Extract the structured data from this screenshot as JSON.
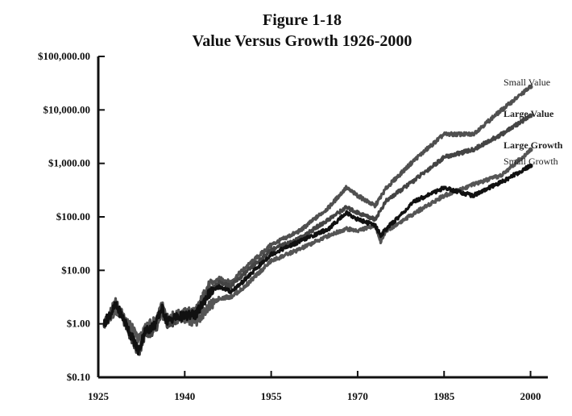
{
  "chart_data": {
    "type": "line",
    "title": "Figure 1-18",
    "subtitle": "Value Versus Growth 1926-2000",
    "y_scale": "log",
    "ylim": [
      0.1,
      100000
    ],
    "xlim": [
      1925,
      2003
    ],
    "y_ticks": [
      {
        "value": 100000,
        "label": "$100,000.00"
      },
      {
        "value": 10000,
        "label": "$10,000.00"
      },
      {
        "value": 1000,
        "label": "$1,000.00"
      },
      {
        "value": 100,
        "label": "$100.00"
      },
      {
        "value": 10,
        "label": "$10.00"
      },
      {
        "value": 1,
        "label": "$1.00"
      },
      {
        "value": 0.1,
        "label": "$0.10"
      }
    ],
    "x_ticks": [
      {
        "value": 1925,
        "label": "1925"
      },
      {
        "value": 1940,
        "label": "1940"
      },
      {
        "value": 1955,
        "label": "1955"
      },
      {
        "value": 1970,
        "label": "1970"
      },
      {
        "value": 1985,
        "label": "1985"
      },
      {
        "value": 2000,
        "label": "2000"
      }
    ],
    "grid": false,
    "legend": "inline labels at line ends (right)",
    "series": [
      {
        "name": "Small Value",
        "label_bold": false,
        "color": "#505050",
        "x": [
          1926,
          1928,
          1929,
          1930,
          1932,
          1933,
          1935,
          1936,
          1937,
          1938,
          1940,
          1942,
          1944,
          1946,
          1948,
          1950,
          1955,
          1960,
          1965,
          1968,
          1970,
          1973,
          1975,
          1980,
          1985,
          1990,
          1995,
          2000
        ],
        "values": [
          1.0,
          2.5,
          1.6,
          1.0,
          0.3,
          0.8,
          1.0,
          2.2,
          1.3,
          1.4,
          1.6,
          1.8,
          5.0,
          7.0,
          6.0,
          10.0,
          30.0,
          55.0,
          150.0,
          350.0,
          250.0,
          160.0,
          350.0,
          1200.0,
          3500.0,
          3500.0,
          10000.0,
          27000.0
        ]
      },
      {
        "name": "Large Value",
        "label_bold": true,
        "color": "#444444",
        "x": [
          1926,
          1928,
          1929,
          1930,
          1932,
          1933,
          1935,
          1936,
          1937,
          1938,
          1940,
          1942,
          1944,
          1946,
          1948,
          1950,
          1955,
          1960,
          1965,
          1968,
          1970,
          1973,
          1975,
          1980,
          1985,
          1990,
          1995,
          2000
        ],
        "values": [
          1.0,
          2.0,
          1.5,
          0.8,
          0.25,
          0.6,
          0.8,
          1.8,
          1.0,
          1.1,
          1.3,
          1.5,
          3.5,
          6.0,
          5.0,
          8.0,
          24.0,
          40.0,
          90.0,
          150.0,
          120.0,
          90.0,
          200.0,
          500.0,
          1300.0,
          1800.0,
          3500.0,
          7800.0
        ]
      },
      {
        "name": "Large Growth",
        "label_bold": true,
        "color": "#555555",
        "x": [
          1926,
          1928,
          1929,
          1930,
          1932,
          1933,
          1935,
          1936,
          1937,
          1938,
          1940,
          1942,
          1944,
          1946,
          1948,
          1950,
          1955,
          1960,
          1965,
          1968,
          1970,
          1973,
          1974,
          1975,
          1980,
          1985,
          1990,
          1995,
          2000
        ],
        "values": [
          1.0,
          1.8,
          1.6,
          1.2,
          0.5,
          0.8,
          1.2,
          1.6,
          1.1,
          1.3,
          1.2,
          1.1,
          2.0,
          3.0,
          3.2,
          4.5,
          15.0,
          25.0,
          45.0,
          60.0,
          55.0,
          70.0,
          35.0,
          55.0,
          120.0,
          250.0,
          400.0,
          600.0,
          1800.0
        ]
      },
      {
        "name": "Small Growth",
        "label_bold": false,
        "color": "#111111",
        "x": [
          1926,
          1928,
          1929,
          1930,
          1932,
          1933,
          1935,
          1936,
          1937,
          1938,
          1940,
          1942,
          1944,
          1946,
          1948,
          1950,
          1955,
          1960,
          1965,
          1968,
          1970,
          1973,
          1974,
          1975,
          1980,
          1985,
          1990,
          1995,
          2000
        ],
        "values": [
          1.0,
          2.2,
          1.5,
          0.9,
          0.3,
          0.7,
          1.0,
          2.0,
          1.1,
          1.3,
          1.4,
          1.5,
          3.5,
          5.0,
          4.0,
          6.0,
          20.0,
          35.0,
          60.0,
          120.0,
          90.0,
          70.0,
          45.0,
          60.0,
          200.0,
          350.0,
          250.0,
          450.0,
          900.0
        ]
      }
    ]
  }
}
